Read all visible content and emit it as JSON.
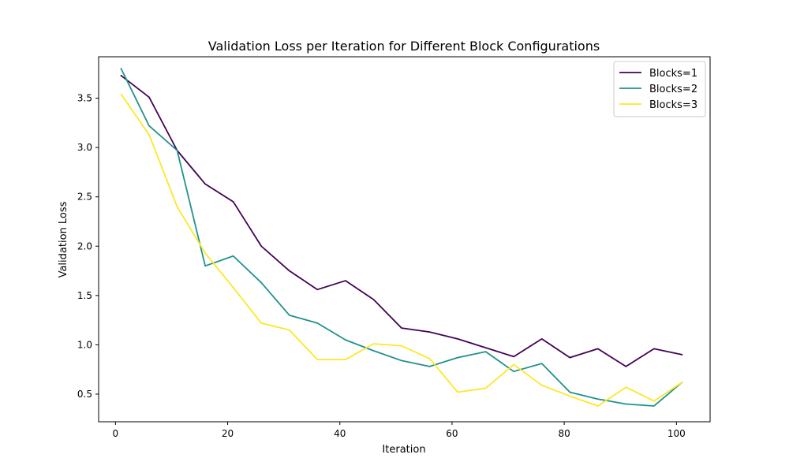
{
  "chart_data": {
    "type": "line",
    "title": "Validation Loss per Iteration for Different Block Configurations",
    "xlabel": "Iteration",
    "ylabel": "Validation Loss",
    "xlim": [
      -3.0,
      106.0
    ],
    "ylim": [
      0.22,
      3.92
    ],
    "xticks": [
      0,
      20,
      40,
      60,
      80,
      100
    ],
    "yticks": [
      0.5,
      1.0,
      1.5,
      2.0,
      2.5,
      3.0,
      3.5
    ],
    "grid": false,
    "legend_position": "top-right",
    "x": [
      1,
      6,
      11,
      16,
      21,
      26,
      31,
      36,
      41,
      46,
      51,
      56,
      61,
      66,
      71,
      76,
      81,
      86,
      91,
      96,
      101
    ],
    "series": [
      {
        "name": "Blocks=1",
        "color": "#440154",
        "values": [
          3.73,
          3.51,
          2.97,
          2.63,
          2.45,
          2.0,
          1.75,
          1.56,
          1.65,
          1.46,
          1.17,
          1.13,
          1.06,
          0.97,
          0.88,
          1.06,
          0.87,
          0.96,
          0.78,
          0.96,
          0.9
        ]
      },
      {
        "name": "Blocks=2",
        "color": "#21918c",
        "values": [
          3.8,
          3.22,
          2.97,
          1.8,
          1.9,
          1.63,
          1.3,
          1.22,
          1.05,
          0.94,
          0.84,
          0.78,
          0.87,
          0.93,
          0.73,
          0.81,
          0.52,
          0.45,
          0.4,
          0.38,
          0.62
        ]
      },
      {
        "name": "Blocks=3",
        "color": "#fde725",
        "values": [
          3.54,
          3.13,
          2.4,
          1.93,
          1.58,
          1.22,
          1.15,
          0.85,
          0.85,
          1.01,
          0.99,
          0.86,
          0.52,
          0.56,
          0.8,
          0.59,
          0.48,
          0.38,
          0.57,
          0.43,
          0.62
        ]
      }
    ]
  }
}
